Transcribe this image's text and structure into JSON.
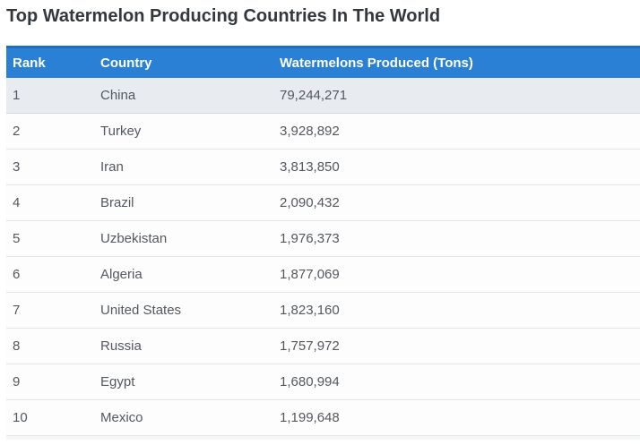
{
  "title": "Top Watermelon Producing Countries In The World",
  "chart_data": {
    "type": "table",
    "title": "Top Watermelon Producing Countries In The World",
    "columns": [
      "Rank",
      "Country",
      "Watermelons Produced (Tons)"
    ],
    "rows": [
      [
        "1",
        "China",
        "79,244,271"
      ],
      [
        "2",
        "Turkey",
        "3,928,892"
      ],
      [
        "3",
        "Iran",
        "3,813,850"
      ],
      [
        "4",
        "Brazil",
        "2,090,432"
      ],
      [
        "5",
        "Uzbekistan",
        "1,976,373"
      ],
      [
        "6",
        "Algeria",
        "1,877,069"
      ],
      [
        "7",
        "United States",
        "1,823,160"
      ],
      [
        "8",
        "Russia",
        "1,757,972"
      ],
      [
        "9",
        "Egypt",
        "1,680,994"
      ],
      [
        "10",
        "Mexico",
        "1,199,648"
      ]
    ],
    "values_tons": [
      79244271,
      3928892,
      3813850,
      2090432,
      1976373,
      1877069,
      1823160,
      1757972,
      1680994,
      1199648
    ],
    "highlighted_row_rank": "1",
    "legend_position": "none",
    "grid": "horizontal-row-dividers"
  },
  "colors": {
    "header_bg": "#2a80d5",
    "header_top_border": "#1e6ec0",
    "header_text": "#ffffff",
    "highlight_row_bg": "#e8ecf1",
    "row_bg": "#fdfdfd",
    "row_divider": "#e2e6e9",
    "row_text": "#53585e",
    "title_text": "#33383d"
  }
}
